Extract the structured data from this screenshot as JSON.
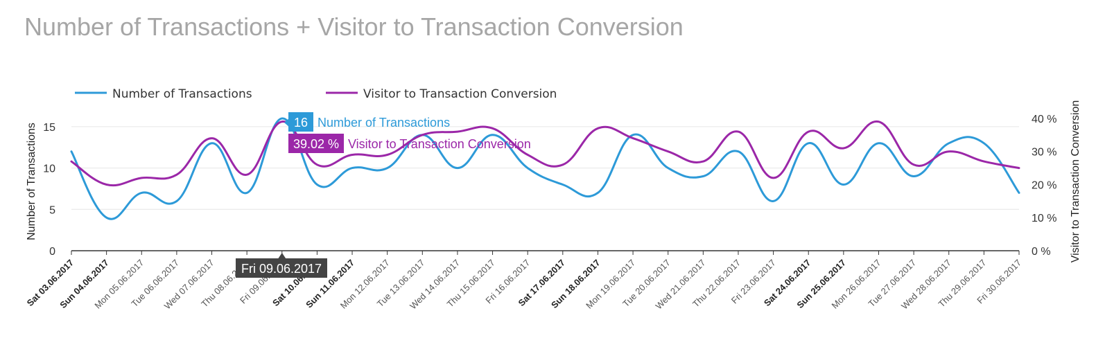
{
  "title": "Number of Transactions + Visitor to Transaction Conversion",
  "chart_data": {
    "type": "line",
    "categories": [
      "Sat 03.06.2017",
      "Sun 04.06.2017",
      "Mon 05.06.2017",
      "Tue 06.06.2017",
      "Wed 07.06.2017",
      "Thu 08.06.2017",
      "Fri 09.06.2017",
      "Sat 10.06.2017",
      "Sun 11.06.2017",
      "Mon 12.06.2017",
      "Tue 13.06.2017",
      "Wed 14.06.2017",
      "Thu 15.06.2017",
      "Fri 16.06.2017",
      "Sat 17.06.2017",
      "Sun 18.06.2017",
      "Mon 19.06.2017",
      "Tue 20.06.2017",
      "Wed 21.06.2017",
      "Thu 22.06.2017",
      "Fri 23.06.2017",
      "Sat 24.06.2017",
      "Sun 25.06.2017",
      "Mon 26.06.2017",
      "Tue 27.06.2017",
      "Wed 28.06.2017",
      "Thu 29.06.2017",
      "Fri 30.06.2017"
    ],
    "weekend": [
      true,
      true,
      false,
      false,
      false,
      false,
      false,
      true,
      true,
      false,
      false,
      false,
      false,
      false,
      true,
      true,
      false,
      false,
      false,
      false,
      false,
      true,
      true,
      false,
      false,
      false,
      false,
      false
    ],
    "series": [
      {
        "name": "Number of Transactions",
        "axis": "left",
        "color": "#2d9ad8",
        "values": [
          12,
          4,
          7,
          6,
          13,
          7,
          16,
          8,
          10,
          10,
          14,
          10,
          14,
          10,
          8,
          7,
          14,
          10,
          9,
          12,
          6,
          13,
          8,
          13,
          9,
          13,
          13,
          7
        ]
      },
      {
        "name": "Visitor to Transaction Conversion",
        "axis": "right",
        "color": "#9b27a8",
        "values": [
          27,
          20,
          22,
          23,
          34,
          23,
          39.02,
          26,
          29,
          29,
          35,
          36,
          37,
          29,
          26,
          37,
          34,
          30,
          27,
          36,
          22,
          36,
          31,
          39,
          26,
          30,
          27,
          25
        ]
      }
    ],
    "y_left": {
      "label": "Number of Transactions",
      "ticks": [
        0,
        5,
        10,
        15
      ],
      "range": [
        0,
        16.5
      ]
    },
    "y_right": {
      "label": "Visitor to Transaction Conversion",
      "ticks": [
        "0 %",
        "10 %",
        "20 %",
        "30 %",
        "40 %"
      ],
      "range": [
        0,
        41.25
      ]
    },
    "legend": {
      "position": "top-left",
      "items": [
        "Number of Transactions",
        "Visitor to Transaction Conversion"
      ]
    },
    "grid": true,
    "tooltip": {
      "category": "Fri 09.06.2017",
      "transactions_value": "16",
      "transactions_label": "Number of Transactions",
      "conversion_value": "39.02 %",
      "conversion_label": "Visitor to Transaction Conversion"
    }
  }
}
